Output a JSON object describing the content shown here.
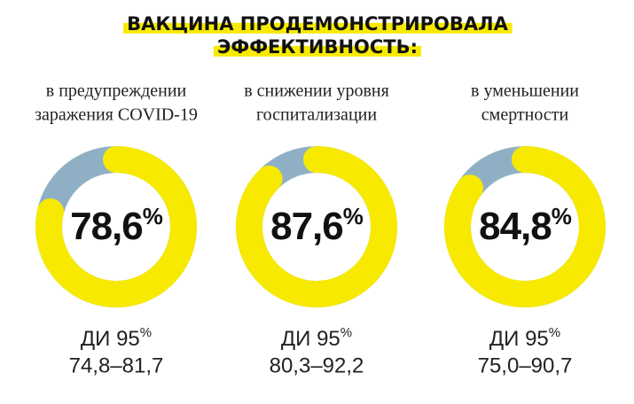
{
  "title": [
    "ВАКЦИНА ПРОДЕМОНСТРИРОВАЛА",
    "ЭФФЕКТИВНОСТЬ:"
  ],
  "highlight_color": "#f7ea00",
  "chart_data": [
    {
      "type": "donut",
      "title": [
        "в предупреждении",
        "заражения COVID-19"
      ],
      "values": [
        78.6
      ],
      "value_labels": [
        "78,6%"
      ],
      "color": "#f7ea00",
      "track_color": "#8fb0c4",
      "ci_title": "ДИ 95%",
      "ci_range": "74,8–81,7"
    },
    {
      "type": "donut",
      "title": [
        "в снижении уровня",
        "госпитализации"
      ],
      "values": [
        87.6
      ],
      "value_labels": [
        "87,6%"
      ],
      "color": "#f7ea00",
      "track_color": "#8fb0c4",
      "ci_title": "ДИ 95%",
      "ci_range": "80,3–92,2"
    },
    {
      "type": "donut",
      "title": [
        "в уменьшении",
        "смертности"
      ],
      "values": [
        84.8
      ],
      "value_labels": [
        "84,8%"
      ],
      "color": "#f7ea00",
      "track_color": "#8fb0c4",
      "ci_title": "ДИ 95%",
      "ci_range": "75,0–90,7"
    }
  ]
}
